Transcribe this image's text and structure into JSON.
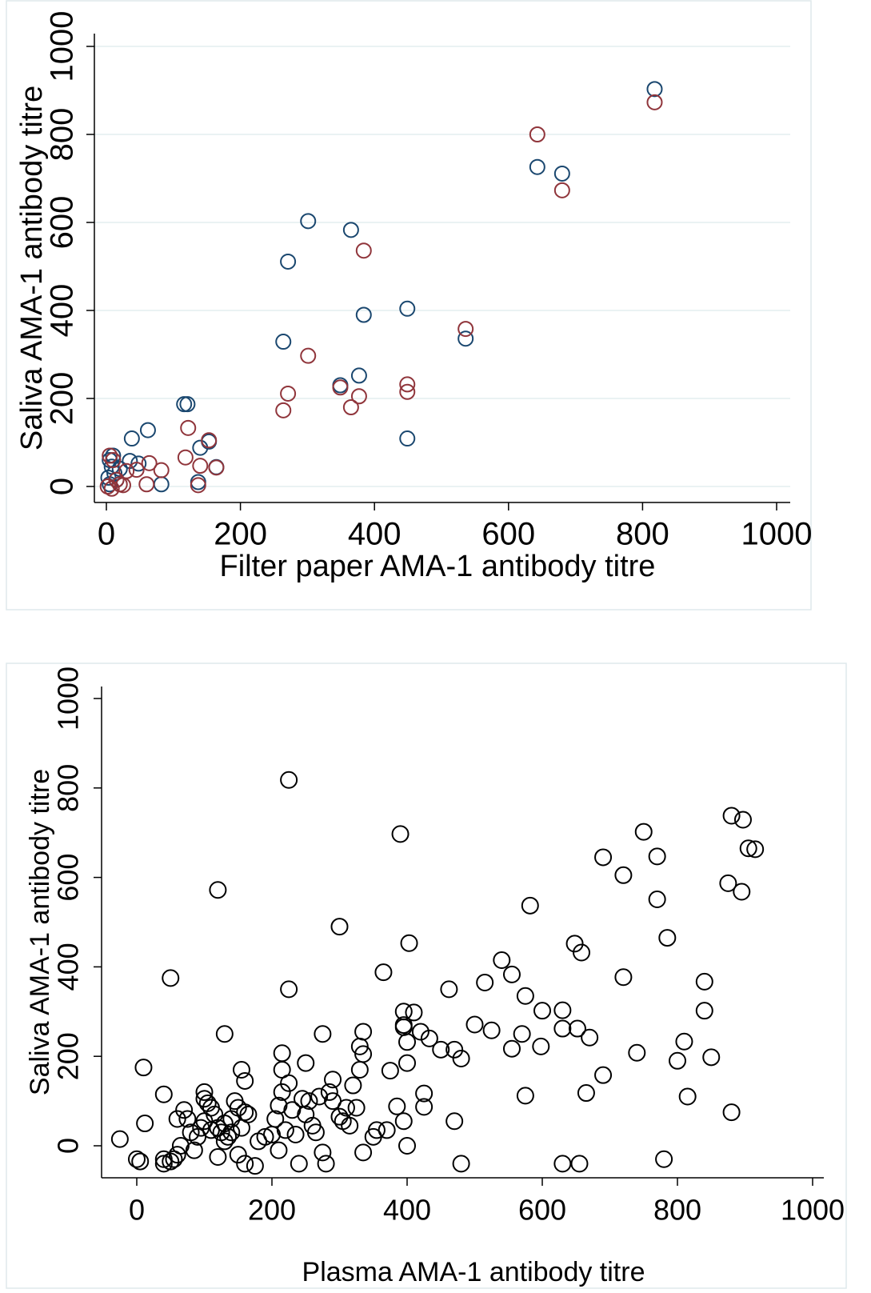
{
  "chart_data": [
    {
      "type": "scatter",
      "x_label": "Filter paper AMA-1 antibody titre",
      "y_label": "Saliva AMA-1 antibody titre",
      "xlim": [
        0,
        1000
      ],
      "ylim": [
        0,
        1000
      ],
      "xticks": [
        0,
        200,
        400,
        600,
        800,
        1000
      ],
      "yticks": [
        0,
        200,
        400,
        600,
        800,
        1000
      ],
      "grid": true,
      "series": [
        {
          "color": "#1a476f",
          "x": [
            818,
            643,
            680,
            301,
            365,
            271,
            384,
            449,
            536,
            264,
            377,
            349,
            449,
            116,
            121,
            153,
            140,
            62,
            38,
            164,
            137,
            82,
            10,
            5,
            8,
            35,
            48,
            20,
            12,
            3,
            15,
            5
          ],
          "y": [
            903,
            726,
            711,
            603,
            583,
            511,
            390,
            404,
            336,
            329,
            252,
            230,
            109,
            187,
            187,
            102,
            88,
            128,
            109,
            44,
            10,
            5,
            70,
            60,
            45,
            58,
            52,
            40,
            30,
            20,
            15,
            5
          ]
        },
        {
          "color": "#90353b",
          "x": [
            818,
            643,
            680,
            384,
            536,
            301,
            449,
            349,
            271,
            377,
            365,
            264,
            449,
            122,
            153,
            118,
            140,
            164,
            137,
            82,
            64,
            60,
            45,
            30,
            20,
            15,
            10,
            5,
            2,
            8,
            25
          ],
          "y": [
            873,
            800,
            673,
            536,
            358,
            297,
            232,
            225,
            211,
            205,
            180,
            173,
            215,
            133,
            105,
            66,
            47,
            43,
            3,
            37,
            53,
            5,
            38,
            35,
            5,
            15,
            60,
            70,
            0,
            -5,
            3
          ]
        }
      ]
    },
    {
      "type": "scatter",
      "x_label": "Plasma AMA-1 antibody titre",
      "y_label": "Saliva AMA-1 antibody titre",
      "xlim": [
        0,
        1000
      ],
      "ylim": [
        0,
        1000
      ],
      "xticks": [
        0,
        200,
        400,
        600,
        800,
        1000
      ],
      "yticks": [
        0,
        200,
        400,
        600,
        800,
        1000
      ],
      "grid": false,
      "series": [
        {
          "color": "#000000",
          "x": [
            225,
            120,
            390,
            300,
            403,
            225,
            50,
            130,
            365,
            880,
            897,
            905,
            915,
            750,
            690,
            770,
            720,
            875,
            895,
            770,
            582,
            785,
            648,
            658,
            540,
            555,
            515,
            575,
            720,
            840,
            462,
            600,
            630,
            840,
            410,
            395,
            500,
            525,
            395,
            420,
            433,
            395,
            570,
            630,
            652,
            670,
            555,
            598,
            740,
            810,
            850,
            800,
            470,
            450,
            480,
            400,
            335,
            330,
            335,
            215,
            215,
            225,
            155,
            160,
            250,
            275,
            290,
            320,
            330,
            375,
            400,
            385,
            425,
            425,
            395,
            470,
            690,
            665,
            575,
            815,
            880,
            10,
            12,
            40,
            -25,
            5,
            0,
            40,
            40,
            50,
            60,
            100,
            100,
            105,
            110,
            115,
            120,
            125,
            130,
            135,
            140,
            145,
            150,
            155,
            160,
            165,
            140,
            130,
            110,
            100,
            90,
            80,
            75,
            70,
            65,
            60,
            55,
            85,
            95,
            120,
            150,
            160,
            175,
            180,
            190,
            200,
            210,
            205,
            210,
            215,
            220,
            230,
            235,
            240,
            245,
            250,
            255,
            260,
            265,
            270,
            275,
            280,
            285,
            290,
            300,
            305,
            310,
            315,
            325,
            335,
            350,
            355,
            370,
            400,
            480,
            630,
            655,
            780
          ],
          "y": [
            818,
            572,
            697,
            490,
            453,
            350,
            375,
            250,
            388,
            738,
            729,
            665,
            663,
            702,
            645,
            647,
            605,
            587,
            568,
            551,
            537,
            465,
            452,
            432,
            415,
            383,
            365,
            335,
            377,
            367,
            350,
            302,
            303,
            302,
            298,
            300,
            271,
            258,
            265,
            255,
            240,
            270,
            250,
            262,
            262,
            242,
            217,
            222,
            208,
            233,
            198,
            190,
            215,
            215,
            195,
            232,
            255,
            222,
            205,
            207,
            170,
            140,
            170,
            145,
            185,
            250,
            148,
            135,
            170,
            168,
            185,
            88,
            117,
            87,
            55,
            55,
            158,
            118,
            112,
            110,
            75,
            175,
            50,
            115,
            15,
            -35,
            -30,
            -40,
            -30,
            -35,
            -20,
            120,
            105,
            95,
            85,
            70,
            40,
            30,
            50,
            20,
            60,
            100,
            85,
            40,
            75,
            70,
            30,
            10,
            35,
            55,
            20,
            30,
            60,
            80,
            0,
            60,
            -30,
            -10,
            40,
            -25,
            -20,
            -40,
            -45,
            10,
            20,
            25,
            -10,
            60,
            90,
            120,
            35,
            80,
            25,
            -40,
            105,
            70,
            100,
            45,
            30,
            110,
            -15,
            -40,
            120,
            100,
            65,
            55,
            85,
            45,
            85,
            -15,
            20,
            35,
            35,
            0,
            -40,
            -40,
            -40,
            -30
          ]
        }
      ]
    }
  ]
}
